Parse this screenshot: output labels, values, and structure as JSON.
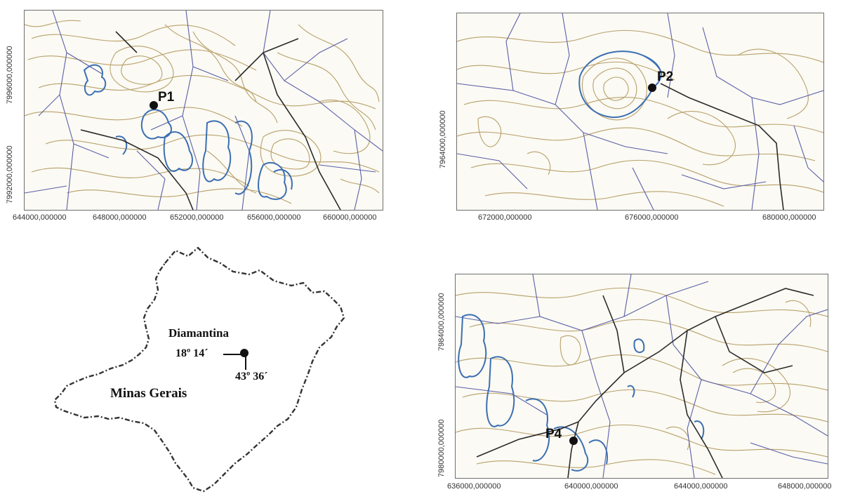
{
  "maps": [
    {
      "point_label": "P1",
      "x_ticks": [
        "644000,000000",
        "648000,000000",
        "652000,000000",
        "656000,000000",
        "660000,000000"
      ],
      "y_ticks": [
        "7996000,000000",
        "7992000,000000"
      ]
    },
    {
      "point_label": "P2",
      "x_ticks": [
        "672000,000000",
        "676000,000000",
        "680000,000000"
      ],
      "y_ticks": [
        "7964000,000000"
      ]
    },
    {
      "point_label": "P4",
      "x_ticks": [
        "636000,000000",
        "640000,000000",
        "644000,000000",
        "648000,000000"
      ],
      "y_ticks": [
        "7984000,000000",
        "7980000,000000"
      ]
    }
  ],
  "location_map": {
    "city": "Diamantina",
    "latitude": "18º 14´",
    "longitude": "43º 36´",
    "state": "Minas Gerais"
  },
  "colors": {
    "contour": "#b8a06a",
    "drainage": "#5a5fa8",
    "river": "#3c6fb2",
    "road": "#2b2b2b",
    "frame": "#6e6e6e"
  }
}
